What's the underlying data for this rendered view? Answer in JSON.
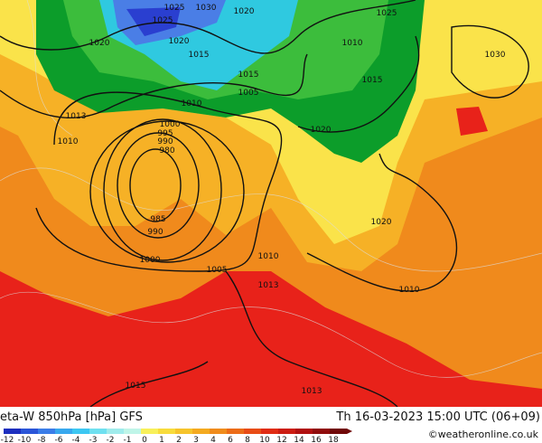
{
  "footer": {
    "title": "eta-W 850hPa [hPa] GFS",
    "datetime": "Th 16-03-2023 15:00 UTC (06+09)",
    "credit": "©weatheronline.co.uk"
  },
  "colorbar": {
    "labels": [
      -12,
      -10,
      -8,
      -6,
      -4,
      -3,
      -2,
      -1,
      0,
      1,
      2,
      3,
      4,
      6,
      8,
      10,
      12,
      14,
      16,
      18
    ]
  },
  "map": {
    "isobar_labels": [
      "1025",
      "1030",
      "1020",
      "1025",
      "1020",
      "1020",
      "1015",
      "1015",
      "1005",
      "1010",
      "1013",
      "1010",
      "1000",
      "995",
      "990",
      "980",
      "985",
      "990",
      "1000",
      "1005",
      "1010",
      "1013",
      "1020",
      "1020",
      "1010",
      "1030",
      "1015",
      "1010",
      "1025",
      "1013",
      "1015"
    ]
  }
}
